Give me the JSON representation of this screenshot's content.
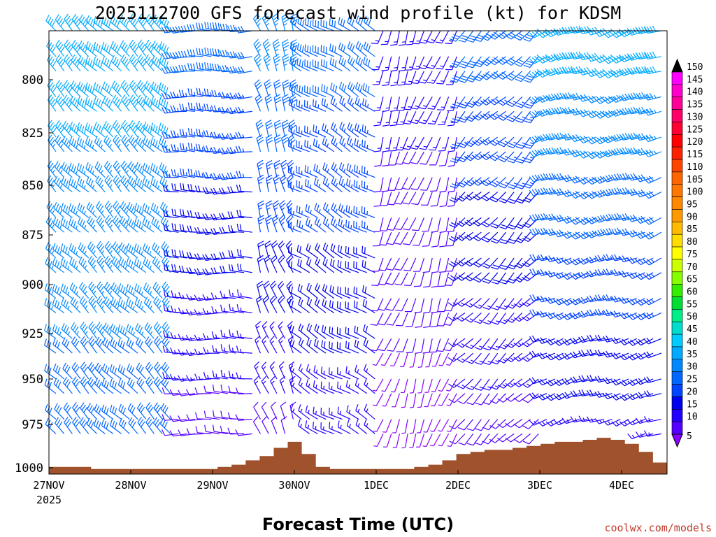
{
  "chart_data": {
    "type": "wind-profile",
    "title": "2025112700 GFS forecast wind profile (kt) for KDSM",
    "xlabel": "Forecast Time (UTC)",
    "credit": "coolwx.com/models",
    "y_axis": {
      "scale": "pressure (inverted)",
      "range": [
        1000,
        780
      ],
      "ticks": [
        "800",
        "825",
        "850",
        "875",
        "900",
        "925",
        "950",
        "975",
        "1000"
      ]
    },
    "x_axis": {
      "range": [
        "2025-11-27T00",
        "2025-12-04T12"
      ],
      "ticks": [
        "27NOV",
        "28NOV",
        "29NOV",
        "30NOV",
        "1DEC",
        "2DEC",
        "3DEC",
        "4DEC"
      ],
      "first_tick_sublabel": "2025"
    },
    "colorbar": {
      "units": "kt",
      "labels": [
        "150",
        "145",
        "140",
        "135",
        "130",
        "125",
        "120",
        "115",
        "110",
        "105",
        "100",
        "95",
        "90",
        "85",
        "80",
        "75",
        "70",
        "65",
        "60",
        "55",
        "50",
        "45",
        "40",
        "35",
        "30",
        "25",
        "20",
        "15",
        "10",
        "5"
      ],
      "colors": [
        "#ff00ff",
        "#ff00cc",
        "#ff0099",
        "#ff0066",
        "#ff0033",
        "#ff0000",
        "#ff2200",
        "#ff4400",
        "#ff6600",
        "#ff7700",
        "#ff8800",
        "#ff9900",
        "#ffbb00",
        "#ffdd00",
        "#ffff00",
        "#ccff00",
        "#88ff00",
        "#33ee00",
        "#00dd33",
        "#00ee88",
        "#00ddcc",
        "#00ccff",
        "#00aaff",
        "#0088ff",
        "#0066ff",
        "#0044ff",
        "#0000ee",
        "#2200ff",
        "#5500ff",
        "#8800ff"
      ]
    },
    "surface_terrain": {
      "color": "#a0522d",
      "surface_pressure_hpa": [
        996,
        996,
        996,
        997,
        997,
        997,
        997,
        997,
        997,
        997,
        997,
        997,
        996,
        995,
        993,
        991,
        987,
        984,
        990,
        996,
        997,
        997,
        997,
        997,
        997,
        997,
        996,
        995,
        993,
        990,
        989,
        988,
        988,
        987,
        986,
        985,
        984,
        984,
        983,
        982,
        983,
        985,
        989,
        994
      ]
    },
    "wind_barbs": {
      "pressure_levels": [
        "780",
        "790",
        "800",
        "810",
        "820",
        "830",
        "840",
        "850",
        "860",
        "870",
        "880",
        "890",
        "900",
        "910",
        "920",
        "930",
        "940",
        "950",
        "960",
        "970",
        "980"
      ],
      "regimes": [
        {
          "period": "27NOV-28NOV12",
          "direction_from_deg": 315,
          "speed_kt": [
            40,
            30
          ]
        },
        {
          "period": "28NOV12-29NOV12",
          "direction_from_deg": 270,
          "speed_kt": [
            30,
            10
          ]
        },
        {
          "period": "29NOV12-30NOV",
          "direction_from_deg": 340,
          "speed_kt": [
            35,
            10
          ]
        },
        {
          "period": "30NOV-1DEC",
          "direction_from_deg": 300,
          "speed_kt": [
            30,
            15
          ]
        },
        {
          "period": "1DEC-2DEC",
          "direction_from_deg": 200,
          "speed_kt": [
            15,
            5
          ]
        },
        {
          "period": "2DEC-3DEC",
          "direction_from_deg": 225,
          "speed_kt": [
            30,
            10
          ]
        },
        {
          "period": "3DEC-4DEC12",
          "direction_from_deg": 250,
          "speed_kt": [
            40,
            15
          ]
        }
      ]
    }
  }
}
